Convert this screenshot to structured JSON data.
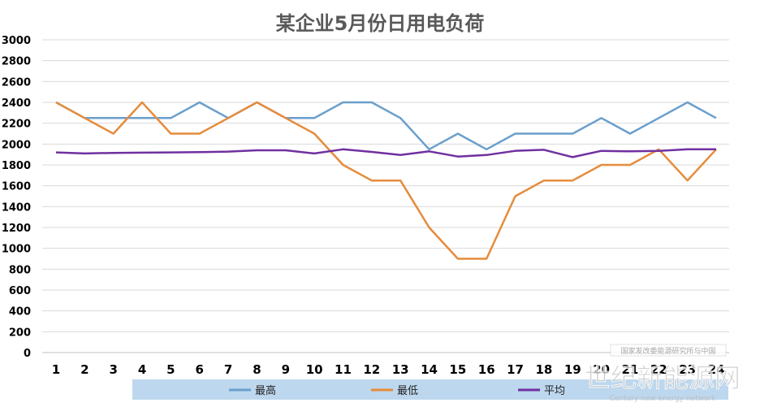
{
  "chart_data": {
    "type": "line",
    "title": "某企业5月份日用电负荷",
    "xlabel": "",
    "ylabel": "",
    "ylim": [
      0,
      3000
    ],
    "yticks": [
      0,
      200,
      400,
      600,
      800,
      1000,
      1200,
      1400,
      1600,
      1800,
      2000,
      2200,
      2400,
      2600,
      2800,
      3000
    ],
    "x": [
      "1",
      "2",
      "3",
      "4",
      "5",
      "6",
      "7",
      "8",
      "9",
      "10",
      "11",
      "12",
      "13",
      "14",
      "15",
      "16",
      "17",
      "18",
      "19",
      "20",
      "21",
      "22",
      "23",
      "24"
    ],
    "grid": true,
    "legend_position": "bottom",
    "series": [
      {
        "name": "最高",
        "color": "#6a9fcc",
        "values": [
          2400,
          2250,
          2250,
          2250,
          2250,
          2400,
          2250,
          2400,
          2250,
          2250,
          2400,
          2400,
          2250,
          1950,
          2100,
          1950,
          2100,
          2100,
          2100,
          2250,
          2100,
          2250,
          2400,
          2250
        ]
      },
      {
        "name": "最低",
        "color": "#e58c3c",
        "values": [
          2400,
          2250,
          2100,
          2400,
          2100,
          2100,
          2250,
          2400,
          2250,
          2100,
          1800,
          1650,
          1650,
          1200,
          900,
          900,
          1500,
          1650,
          1650,
          1800,
          1800,
          1950,
          1650,
          1950
        ]
      },
      {
        "name": "平均",
        "color": "#7030a0",
        "values": [
          1920,
          1910,
          1915,
          1918,
          1920,
          1922,
          1928,
          1940,
          1940,
          1910,
          1950,
          1925,
          1895,
          1930,
          1880,
          1895,
          1935,
          1945,
          1875,
          1935,
          1930,
          1935,
          1950,
          1950
        ]
      }
    ]
  },
  "watermark": {
    "small": "国家发改委能源研究所与中国",
    "large": "世纪新能源网",
    "sub": "Century new energy network"
  }
}
